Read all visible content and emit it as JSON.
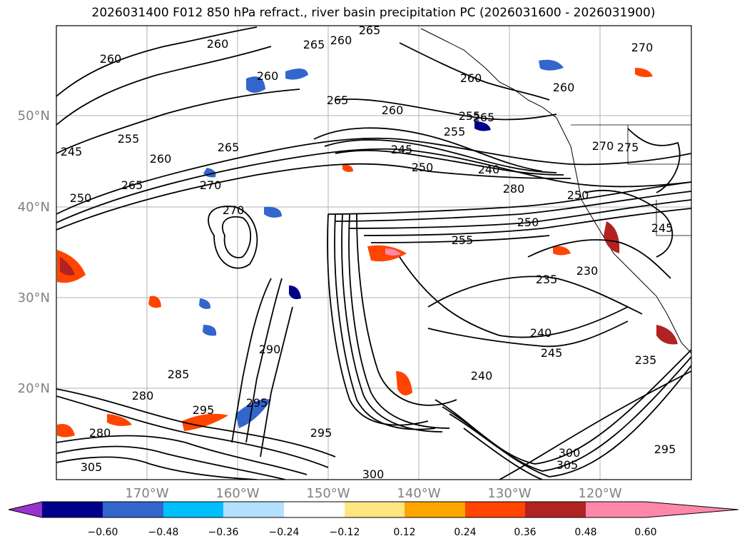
{
  "title": "2026031400 F012 850 hPa refract., river basin precipitation PC (2026031600 - 2026031900)",
  "axes": {
    "lat_labels": [
      "50°N",
      "40°N",
      "30°N",
      "20°N"
    ],
    "lon_labels": [
      "170°W",
      "160°W",
      "150°W",
      "140°W",
      "130°W",
      "120°W"
    ],
    "label_color": "#808080",
    "grid": true
  },
  "colorbar": {
    "tick_labels": [
      "−0.60",
      "−0.48",
      "−0.36",
      "−0.24",
      "−0.12",
      "0.12",
      "0.24",
      "0.36",
      "0.48",
      "0.60"
    ],
    "colors": [
      "#9933cc",
      "#00008b",
      "#3366cc",
      "#00bfff",
      "#b3e0ff",
      "#ffffff",
      "#ffe680",
      "#ffa500",
      "#ff4500",
      "#b22222",
      "#ff88aa"
    ],
    "extend": "both"
  },
  "contours": {
    "color": "#000000",
    "labels": [
      "265",
      "260",
      "260",
      "265",
      "260",
      "255",
      "260",
      "250",
      "245",
      "260",
      "265",
      "255",
      "265",
      "265",
      "245",
      "240",
      "250",
      "270",
      "260",
      "255",
      "270",
      "285",
      "280",
      "280",
      "295",
      "290",
      "295",
      "300",
      "305",
      "300",
      "305",
      "295",
      "240",
      "235",
      "230",
      "235",
      "240",
      "245",
      "255",
      "250",
      "245",
      "270",
      "275",
      "260",
      "265",
      "260",
      "270",
      "250",
      "295",
      "280"
    ]
  }
}
